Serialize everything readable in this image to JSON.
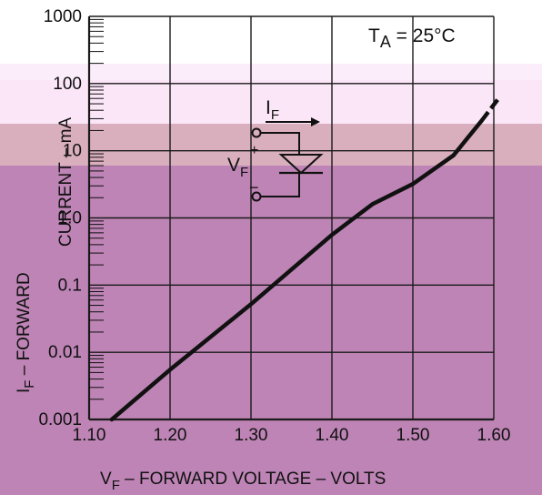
{
  "chart_data": {
    "type": "line",
    "annotation": "T_A = 25°C",
    "ylabel_top": "CURRENT – mA",
    "ylabel_bottom": "I_F – FORWARD",
    "xlabel": "V_F – FORWARD VOLTAGE – VOLTS",
    "x_ticks": [
      "1.10",
      "1.20",
      "1.30",
      "1.40",
      "1.50",
      "1.60"
    ],
    "y_ticks": [
      "1000",
      "100",
      "10",
      "1.0",
      "0.1",
      "0.01",
      "0.001"
    ],
    "xlim": [
      1.1,
      1.6
    ],
    "ylim": [
      0.001,
      1000
    ],
    "yscale": "log",
    "grid": true,
    "series": [
      {
        "values": [
          {
            "x": 1.128,
            "y": 0.001
          },
          {
            "x": 1.2,
            "y": 0.0055
          },
          {
            "x": 1.3,
            "y": 0.052
          },
          {
            "x": 1.4,
            "y": 0.56
          },
          {
            "x": 1.45,
            "y": 1.6
          },
          {
            "x": 1.5,
            "y": 3.2
          },
          {
            "x": 1.55,
            "y": 8.5
          },
          {
            "x": 1.585,
            "y": 28
          }
        ],
        "continuation": [
          {
            "x": 1.585,
            "y": 28
          },
          {
            "x": 1.605,
            "y": 58
          }
        ]
      }
    ],
    "inset": {
      "current_label": "I_F",
      "voltage_label": "V_F",
      "plus": "+",
      "minus": "−"
    }
  },
  "colors": {
    "ink": "#111111",
    "grid": "#1a1a1a",
    "band_light": "#fbe6f8",
    "band_tan": "#d9aebd",
    "band_purple": "#bd84b5",
    "background": "#ffffff"
  }
}
